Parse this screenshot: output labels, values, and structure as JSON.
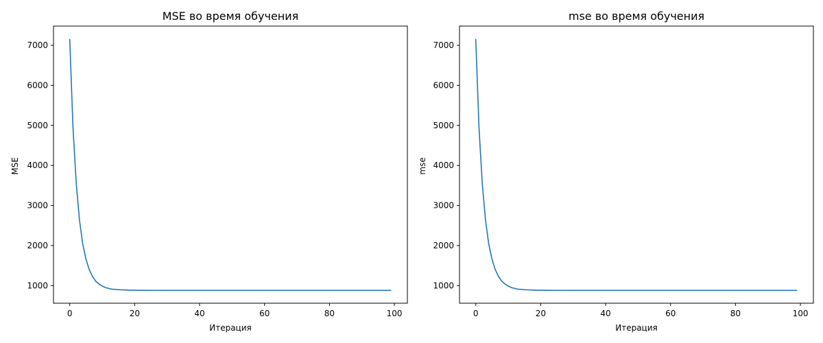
{
  "chart_data": [
    {
      "type": "line",
      "title": "MSE во время обучения",
      "xlabel": "Итерация",
      "ylabel": "MSE",
      "xlim": [
        -5,
        104
      ],
      "ylim": [
        560,
        7480
      ],
      "xticks": [
        0,
        20,
        40,
        60,
        80,
        100
      ],
      "yticks": [
        1000,
        2000,
        3000,
        4000,
        5000,
        6000,
        7000
      ],
      "grid": false,
      "color": "#1f77b4",
      "x": [
        0,
        1,
        2,
        3,
        4,
        5,
        6,
        7,
        8,
        9,
        10,
        11,
        12,
        13,
        14,
        15,
        16,
        17,
        18,
        19,
        20,
        22,
        25,
        30,
        40,
        50,
        60,
        70,
        80,
        90,
        99
      ],
      "y": [
        7160,
        4950,
        3560,
        2640,
        2040,
        1660,
        1400,
        1230,
        1110,
        1040,
        990,
        950,
        930,
        910,
        905,
        898,
        894,
        890,
        887,
        885,
        884,
        882,
        881,
        880,
        880,
        880,
        880,
        880,
        880,
        880,
        880
      ]
    },
    {
      "type": "line",
      "title": "mse во время обучения",
      "xlabel": "Итерация",
      "ylabel": "mse",
      "xlim": [
        -5,
        104
      ],
      "ylim": [
        560,
        7480
      ],
      "xticks": [
        0,
        20,
        40,
        60,
        80,
        100
      ],
      "yticks": [
        1000,
        2000,
        3000,
        4000,
        5000,
        6000,
        7000
      ],
      "grid": false,
      "color": "#1f77b4",
      "x": [
        0,
        1,
        2,
        3,
        4,
        5,
        6,
        7,
        8,
        9,
        10,
        11,
        12,
        13,
        14,
        15,
        16,
        17,
        18,
        19,
        20,
        22,
        25,
        30,
        40,
        50,
        60,
        70,
        80,
        90,
        99
      ],
      "y": [
        7160,
        4950,
        3560,
        2640,
        2040,
        1660,
        1400,
        1230,
        1110,
        1040,
        990,
        950,
        930,
        910,
        905,
        898,
        894,
        890,
        887,
        885,
        884,
        882,
        881,
        880,
        880,
        880,
        880,
        880,
        880,
        880,
        880
      ]
    }
  ]
}
